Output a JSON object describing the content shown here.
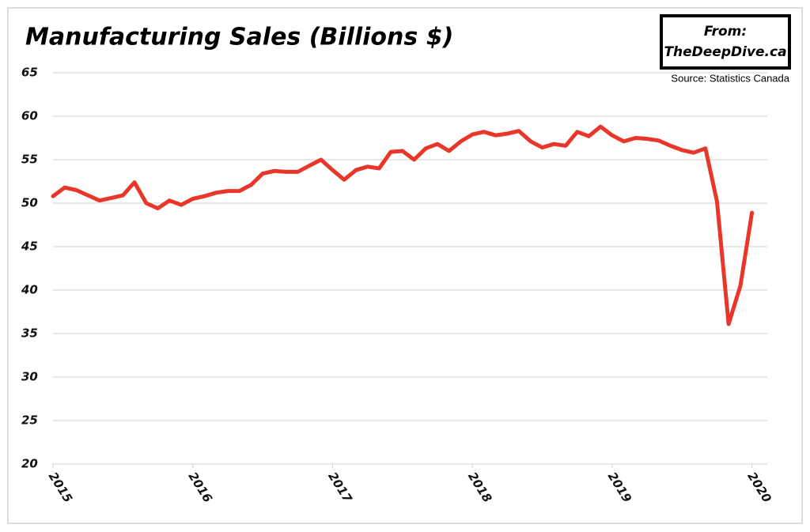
{
  "chart_data": {
    "type": "line",
    "title": "Manufacturing Sales (Billions $)",
    "annotations": [
      "From:",
      "TheDeepDive.ca",
      "Source: Statistics Canada"
    ],
    "x": [
      2015,
      2015.083,
      2015.167,
      2015.25,
      2015.333,
      2015.417,
      2015.5,
      2015.583,
      2015.667,
      2015.75,
      2015.833,
      2015.917,
      2016,
      2016.083,
      2016.167,
      2016.25,
      2016.333,
      2016.417,
      2016.5,
      2016.583,
      2016.667,
      2016.75,
      2016.833,
      2016.917,
      2017,
      2017.083,
      2017.167,
      2017.25,
      2017.333,
      2017.417,
      2017.5,
      2017.583,
      2017.667,
      2017.75,
      2017.833,
      2017.917,
      2018,
      2018.083,
      2018.167,
      2018.25,
      2018.333,
      2018.417,
      2018.5,
      2018.583,
      2018.667,
      2018.75,
      2018.833,
      2018.917,
      2019,
      2019.083,
      2019.167,
      2019.25,
      2019.333,
      2019.417,
      2019.5,
      2019.583,
      2019.667,
      2019.75,
      2019.833,
      2019.917,
      2020
    ],
    "series": [
      {
        "name": "Manufacturing Sales",
        "color": "#e8372a",
        "values": [
          50.8,
          51.8,
          51.5,
          50.9,
          50.3,
          50.6,
          50.9,
          52.4,
          50.0,
          49.4,
          50.3,
          49.8,
          50.5,
          50.8,
          51.2,
          51.4,
          51.4,
          52.1,
          53.4,
          53.7,
          53.6,
          53.6,
          54.3,
          55.0,
          53.8,
          52.7,
          53.8,
          54.2,
          54.0,
          55.9,
          56.0,
          55.0,
          56.3,
          56.8,
          56.0,
          57.1,
          57.9,
          58.2,
          57.8,
          58.0,
          58.3,
          57.1,
          56.4,
          56.8,
          56.6,
          58.2,
          57.7,
          58.8,
          57.8,
          57.1,
          57.5,
          57.4,
          57.2,
          56.6,
          56.1,
          55.8,
          56.3,
          50.2,
          36.1,
          40.5,
          48.9
        ]
      }
    ],
    "xlim": [
      2015,
      2020.07
    ],
    "xticks": [
      2015,
      2016,
      2017,
      2018,
      2019,
      2020
    ],
    "ylim": [
      20,
      65
    ],
    "yticks": [
      20,
      25,
      30,
      35,
      40,
      45,
      50,
      55,
      60,
      65
    ],
    "grid": true
  }
}
